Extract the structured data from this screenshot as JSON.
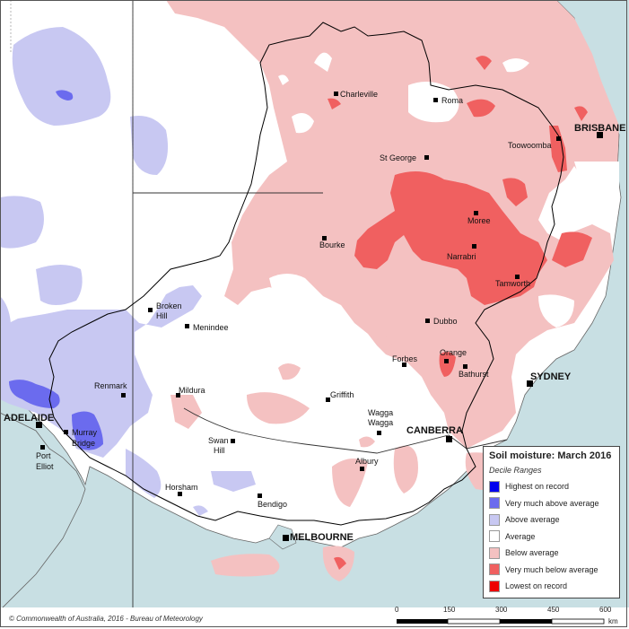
{
  "legend": {
    "title": "Soil moisture: March 2016",
    "subtitle": "Decile Ranges",
    "items": [
      {
        "label": "Highest on record",
        "color": "#0000ee"
      },
      {
        "label": "Very much above average",
        "color": "#6b6bee"
      },
      {
        "label": "Above average",
        "color": "#c8c8f2"
      },
      {
        "label": "Average",
        "color": "#ffffff"
      },
      {
        "label": "Below average",
        "color": "#f4c1c1"
      },
      {
        "label": "Very much below average",
        "color": "#f06060"
      },
      {
        "label": "Lowest on record",
        "color": "#ee0000"
      }
    ]
  },
  "copyright": "© Commonwealth of Australia, 2016 - Bureau of Meteorology",
  "scale": {
    "ticks": [
      "0",
      "150",
      "300",
      "450",
      "600"
    ],
    "unit": "km"
  },
  "places": {
    "charleville": "Charleville",
    "roma": "Roma",
    "brisbane": "BRISBANE",
    "toowoomba": "Toowoomba",
    "st_george": "St George",
    "moree": "Moree",
    "bourke": "Bourke",
    "narrabri": "Narrabri",
    "tamworth": "Tamworth",
    "broken_hill_1": "Broken",
    "broken_hill_2": "Hill",
    "menindee": "Menindee",
    "dubbo": "Dubbo",
    "orange": "Orange",
    "forbes": "Forbes",
    "bathurst": "Bathurst",
    "sydney": "SYDNEY",
    "renmark": "Renmark",
    "mildura": "Mildura",
    "griffith": "Griffith",
    "wagga_1": "Wagga",
    "wagga_2": "Wagga",
    "canberra": "CANBERRA",
    "adelaide": "ADELAIDE",
    "murray_bridge_1": "Murray",
    "murray_bridge_2": "Bridge",
    "port_elliot_1": "Port",
    "port_elliot_2": "Elliot",
    "swan_hill_1": "Swan",
    "swan_hill_2": "Hill",
    "albury": "Albury",
    "horsham": "Horsham",
    "bendigo": "Bendigo",
    "melbourne": "MELBOURNE"
  }
}
